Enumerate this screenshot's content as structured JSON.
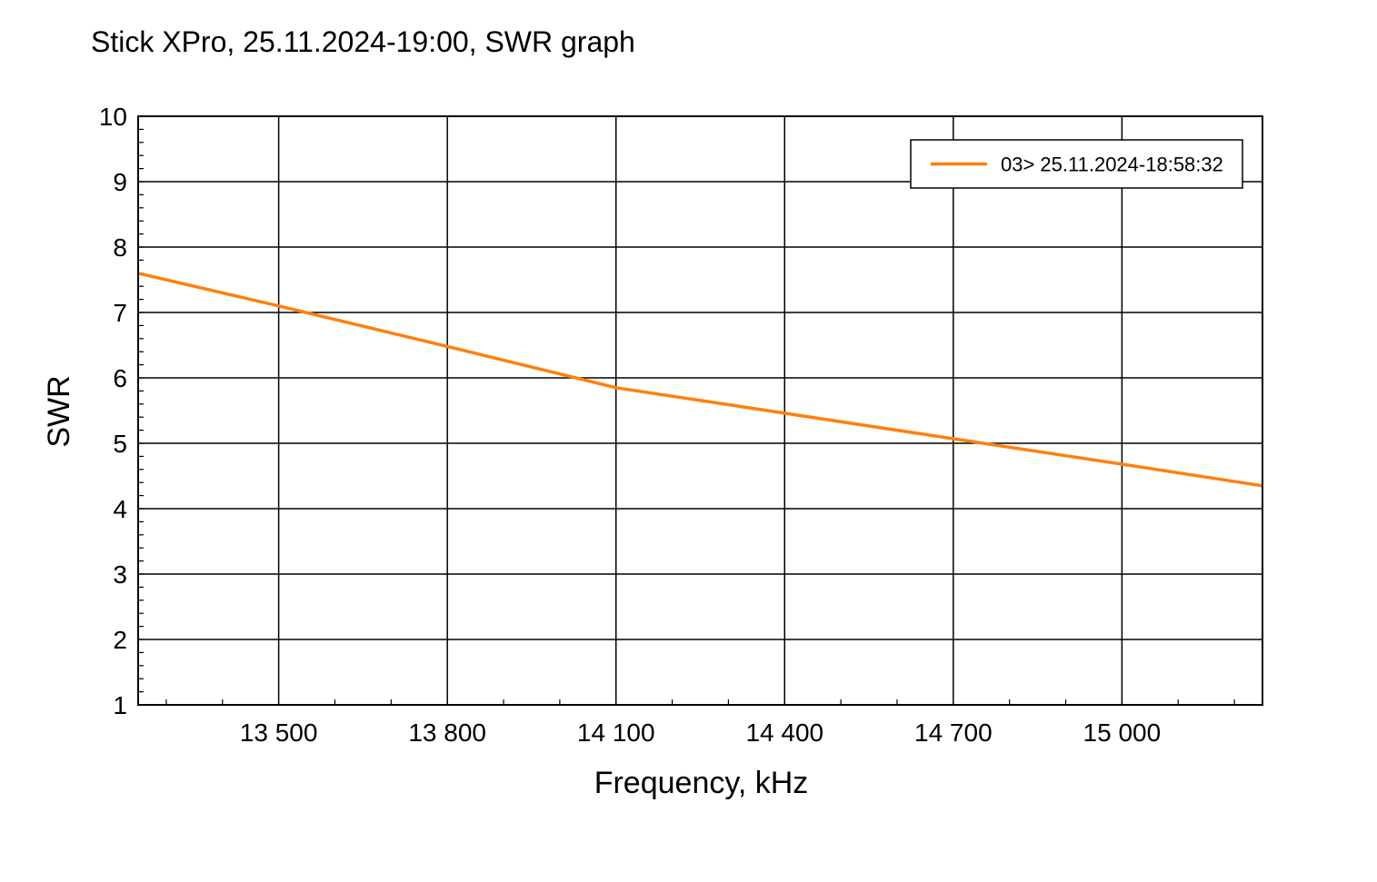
{
  "chart_data": {
    "type": "line",
    "title": "Stick XPro, 25.11.2024-19:00, SWR graph",
    "xlabel": "Frequency, kHz",
    "ylabel": "SWR",
    "xlim": [
      13250,
      15250
    ],
    "ylim": [
      1,
      10
    ],
    "x_ticks": [
      13500,
      13800,
      14100,
      14400,
      14700,
      15000
    ],
    "x_tick_labels": [
      "13 500",
      "13 800",
      "14 100",
      "14 400",
      "14 700",
      "15 000"
    ],
    "y_ticks": [
      1,
      2,
      3,
      4,
      5,
      6,
      7,
      8,
      9,
      10
    ],
    "y_tick_labels": [
      "1",
      "2",
      "3",
      "4",
      "5",
      "6",
      "7",
      "8",
      "9",
      "10"
    ],
    "grid": true,
    "legend_position": "top-right",
    "series": [
      {
        "name": "03> 25.11.2024-18:58:32",
        "color": "#ff7f0e",
        "x": [
          13250,
          13500,
          13800,
          14100,
          14400,
          14700,
          15000,
          15250
        ],
        "y": [
          7.6,
          7.1,
          6.48,
          5.85,
          5.46,
          5.07,
          4.68,
          4.35
        ]
      }
    ]
  }
}
